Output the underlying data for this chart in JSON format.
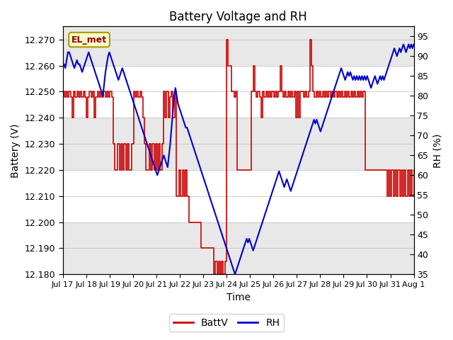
{
  "title": "Battery Voltage and RH",
  "xlabel": "Time",
  "ylabel_left": "Battery (V)",
  "ylabel_right": "RH (%)",
  "ylim_left": [
    12.18,
    12.275
  ],
  "ylim_right": [
    35,
    97.5
  ],
  "yticks_left": [
    12.18,
    12.19,
    12.2,
    12.21,
    12.22,
    12.23,
    12.24,
    12.25,
    12.26,
    12.27
  ],
  "yticks_right": [
    35,
    40,
    45,
    50,
    55,
    60,
    65,
    70,
    75,
    80,
    85,
    90,
    95
  ],
  "label_box_text": "EL_met",
  "label_box_facecolor": "#ffffcc",
  "label_box_edgecolor": "#aa9900",
  "label_box_textcolor": "#880000",
  "batt_color": "#cc0000",
  "rh_color": "#0000cc",
  "legend_entries": [
    "BattV",
    "RH"
  ],
  "band_colors": [
    "#e8e8e8",
    "#ffffff"
  ],
  "band_boundaries_left": [
    12.18,
    12.2,
    12.22,
    12.24,
    12.26,
    12.28
  ],
  "title_fontsize": 12,
  "axis_label_fontsize": 10,
  "tick_fontsize": 9,
  "total_days": 15,
  "batt_data": [
    12.25,
    12.248,
    12.25,
    12.248,
    12.25,
    12.248,
    12.24,
    12.25,
    12.248,
    12.25,
    12.248,
    12.25,
    12.248,
    12.25,
    12.248,
    12.24,
    12.248,
    12.25,
    12.248,
    12.25,
    12.24,
    12.248,
    12.25,
    12.248,
    12.25,
    12.248,
    12.25,
    12.248,
    12.25,
    12.248,
    12.25,
    12.248,
    12.23,
    12.22,
    12.22,
    12.23,
    12.22,
    12.23,
    12.22,
    12.23,
    12.22,
    12.23,
    12.22,
    12.22,
    12.23,
    12.25,
    12.248,
    12.25,
    12.248,
    12.25,
    12.248,
    12.24,
    12.23,
    12.22,
    12.22,
    12.23,
    12.22,
    12.23,
    12.22,
    12.23,
    12.22,
    12.23,
    12.22,
    12.23,
    12.25,
    12.24,
    12.25,
    12.24,
    12.248,
    12.25,
    12.24,
    12.25,
    12.21,
    12.21,
    12.22,
    12.21,
    12.22,
    12.21,
    12.22,
    12.21,
    12.2,
    12.2,
    12.2,
    12.2,
    12.2,
    12.2,
    12.2,
    12.2,
    12.19,
    12.19,
    12.19,
    12.19,
    12.19,
    12.19,
    12.19,
    12.19,
    12.18,
    12.185,
    12.18,
    12.185,
    12.18,
    12.185,
    12.18,
    12.185,
    12.27,
    12.26,
    12.26,
    12.25,
    12.25,
    12.248,
    12.25,
    12.22,
    12.22,
    12.22,
    12.22,
    12.22,
    12.22,
    12.22,
    12.22,
    12.22,
    12.25,
    12.26,
    12.25,
    12.248,
    12.25,
    12.248,
    12.24,
    12.25,
    12.248,
    12.25,
    12.248,
    12.25,
    12.248,
    12.25,
    12.248,
    12.25,
    12.248,
    12.25,
    12.26,
    12.25,
    12.248,
    12.25,
    12.248,
    12.25,
    12.248,
    12.25,
    12.248,
    12.25,
    12.24,
    12.25,
    12.24,
    12.25,
    12.25,
    12.248,
    12.25,
    12.248,
    12.25,
    12.27,
    12.26,
    12.25,
    12.248,
    12.25,
    12.248,
    12.25,
    12.248,
    12.25,
    12.248,
    12.25,
    12.248,
    12.25,
    12.248,
    12.25,
    12.248,
    12.25,
    12.248,
    12.25,
    12.248,
    12.25,
    12.248,
    12.25,
    12.248,
    12.25,
    12.248,
    12.25,
    12.248,
    12.25,
    12.248,
    12.25,
    12.248,
    12.25,
    12.248,
    12.25,
    12.22,
    12.22,
    12.22,
    12.22,
    12.22,
    12.22,
    12.22,
    12.22,
    12.22,
    12.22,
    12.22,
    12.22,
    12.22,
    12.22,
    12.21,
    12.22,
    12.21,
    12.22,
    12.21,
    12.22,
    12.21,
    12.22,
    12.21,
    12.22,
    12.21,
    12.22,
    12.21,
    12.22,
    12.21,
    12.22,
    12.21,
    12.22
  ],
  "rh_data": [
    88,
    88,
    87,
    89,
    91,
    91,
    90,
    89,
    88,
    87,
    88,
    89,
    88,
    88,
    87,
    86,
    87,
    88,
    89,
    90,
    91,
    90,
    89,
    88,
    87,
    86,
    85,
    84,
    83,
    82,
    81,
    80,
    83,
    86,
    88,
    90,
    91,
    90,
    89,
    88,
    87,
    86,
    85,
    84,
    85,
    86,
    87,
    86,
    85,
    84,
    83,
    82,
    81,
    80,
    79,
    78,
    77,
    76,
    75,
    74,
    73,
    72,
    71,
    70,
    69,
    68,
    67,
    66,
    65,
    64,
    63,
    62,
    61,
    60,
    61,
    62,
    63,
    64,
    65,
    64,
    63,
    62,
    65,
    68,
    72,
    76,
    80,
    82,
    80,
    78,
    77,
    76,
    75,
    74,
    73,
    72,
    72,
    71,
    70,
    69,
    68,
    67,
    66,
    65,
    64,
    63,
    62,
    61,
    60,
    59,
    58,
    57,
    56,
    55,
    54,
    53,
    52,
    51,
    50,
    49,
    48,
    47,
    46,
    45,
    44,
    43,
    42,
    41,
    40,
    39,
    38,
    37,
    36,
    35,
    36,
    37,
    38,
    39,
    40,
    41,
    42,
    43,
    44,
    43,
    44,
    43,
    42,
    41,
    42,
    43,
    44,
    45,
    46,
    47,
    48,
    49,
    50,
    51,
    52,
    53,
    54,
    55,
    56,
    57,
    58,
    59,
    60,
    61,
    60,
    59,
    58,
    57,
    58,
    59,
    58,
    57,
    56,
    57,
    58,
    59,
    60,
    61,
    62,
    63,
    64,
    65,
    66,
    67,
    68,
    69,
    70,
    71,
    72,
    73,
    74,
    73,
    74,
    73,
    72,
    71,
    72,
    73,
    74,
    75,
    76,
    77,
    78,
    79,
    80,
    81,
    82,
    83,
    84,
    85,
    86,
    87,
    86,
    85,
    84,
    85,
    86,
    85,
    86,
    85,
    84,
    85,
    84,
    85,
    84,
    85,
    84,
    85,
    84,
    85,
    84,
    85,
    84,
    83,
    82,
    83,
    84,
    85,
    84,
    83,
    84,
    85,
    84,
    85,
    84,
    85,
    86,
    87,
    88,
    89,
    90,
    91,
    92,
    91,
    90,
    91,
    92,
    91,
    92,
    93,
    92,
    91,
    92,
    93,
    92,
    93,
    92,
    93
  ]
}
